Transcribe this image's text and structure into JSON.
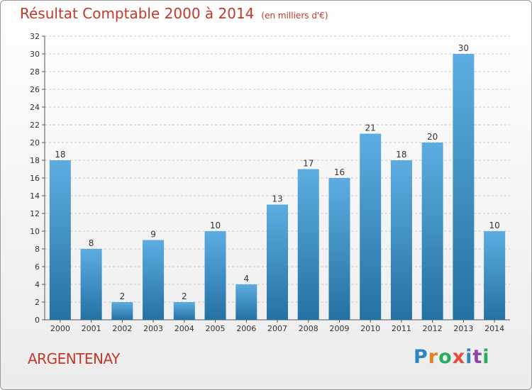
{
  "title": "Résultat Comptable 2000 à 2014",
  "unit": "(en milliers d'€)",
  "town": "ARGENTENAY",
  "logo": {
    "letters": [
      {
        "ch": "P",
        "color": "#2e86c1"
      },
      {
        "ch": "r",
        "color": "#e67e22"
      },
      {
        "ch": "o",
        "color": "#27ae60"
      },
      {
        "ch": "x",
        "color": "#e74c3c"
      },
      {
        "ch": "i",
        "color": "#2e86c1"
      },
      {
        "ch": "t",
        "color": "#8e44ad"
      },
      {
        "ch": "i",
        "color": "#27ae60"
      }
    ]
  },
  "colors": {
    "bar_top": "#5dade2",
    "bar_bottom": "#2471a3",
    "title": "#c0392b"
  },
  "chart_data": {
    "type": "bar",
    "categories": [
      "2000",
      "2001",
      "2002",
      "2003",
      "2004",
      "2005",
      "2006",
      "2007",
      "2008",
      "2009",
      "2010",
      "2011",
      "2012",
      "2013",
      "2014"
    ],
    "values": [
      18,
      8,
      2,
      9,
      2,
      10,
      4,
      13,
      17,
      16,
      21,
      18,
      20,
      30,
      10
    ],
    "ylim": [
      0,
      32
    ],
    "yticks": [
      0,
      2,
      4,
      6,
      8,
      10,
      12,
      14,
      16,
      18,
      20,
      22,
      24,
      26,
      28,
      30,
      32
    ],
    "grid": true
  }
}
